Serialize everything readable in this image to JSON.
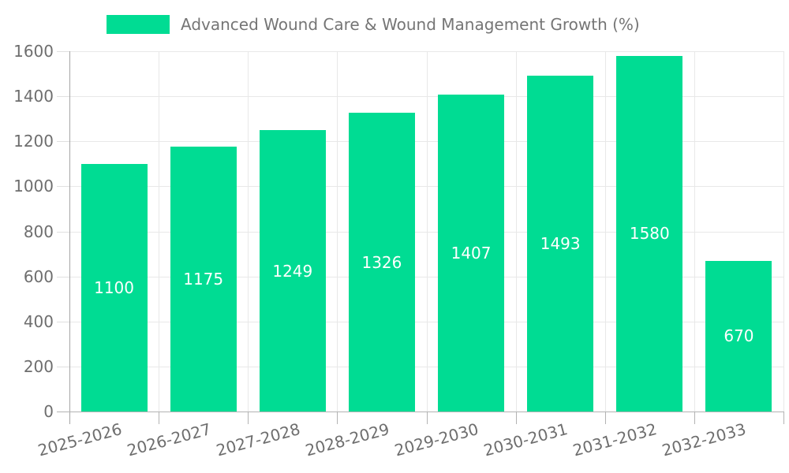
{
  "chart_data": {
    "type": "bar",
    "title": "Advanced Wound Care & Wound Management Growth (%)",
    "categories": [
      "2025-2026",
      "2026-2027",
      "2027-2028",
      "2028-2029",
      "2029-2030",
      "2030-2031",
      "2031-2032",
      "2032-2033"
    ],
    "values": [
      1100,
      1175,
      1249,
      1326,
      1407,
      1493,
      1580,
      670
    ],
    "value_labels": [
      "1100",
      "1175",
      "1249",
      "1326",
      "1407",
      "1493",
      "1580",
      "670"
    ],
    "yticks": [
      0,
      200,
      400,
      600,
      800,
      1000,
      1200,
      1400,
      1600
    ],
    "ylim": [
      0,
      1600
    ],
    "xlabel": "",
    "ylabel": "",
    "grid": "on",
    "legend_position": "top",
    "x_label_rotation_deg": -15,
    "colors": {
      "bar": "#00dc93",
      "value_label": "#ffffff",
      "gridline": "#e8e8e8",
      "axis_line": "#a6a6a6",
      "baseline": "#b3b3b3",
      "tick_label": "#6e6e6e",
      "legend_text": "#757575",
      "background": "#ffffff"
    }
  },
  "legend": {
    "label": "Advanced Wound Care & Wound Management Growth (%)"
  }
}
